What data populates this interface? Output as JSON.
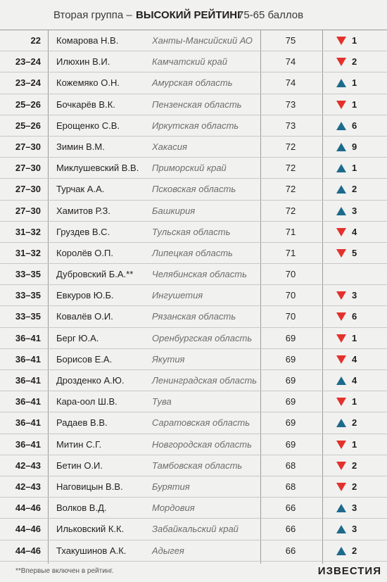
{
  "header": {
    "group": "Вторая группа –",
    "rating": "ВЫСОКИЙ РЕЙТИНГ",
    "range": "75-65 баллов"
  },
  "table": {
    "rows": [
      {
        "rank": "22",
        "name": "Комарова Н.В.",
        "region": "Ханты-Мансийский АО",
        "score": "75",
        "trend": "down",
        "change": "1"
      },
      {
        "rank": "23–24",
        "name": "Илюхин В.И.",
        "region": "Камчатский край",
        "score": "74",
        "trend": "down",
        "change": "2"
      },
      {
        "rank": "23–24",
        "name": "Кожемяко О.Н.",
        "region": "Амурская область",
        "score": "74",
        "trend": "up",
        "change": "1"
      },
      {
        "rank": "25–26",
        "name": "Бочкарёв В.К.",
        "region": "Пензенская область",
        "score": "73",
        "trend": "down",
        "change": "1"
      },
      {
        "rank": "25–26",
        "name": "Ерощенко С.В.",
        "region": "Иркутская область",
        "score": "73",
        "trend": "up",
        "change": "6"
      },
      {
        "rank": "27–30",
        "name": "Зимин В.М.",
        "region": "Хакасия",
        "score": "72",
        "trend": "up",
        "change": "9"
      },
      {
        "rank": "27–30",
        "name": "Миклушевский В.В.",
        "region": "Приморский край",
        "score": "72",
        "trend": "up",
        "change": "1"
      },
      {
        "rank": "27–30",
        "name": "Турчак А.А.",
        "region": "Псковская область",
        "score": "72",
        "trend": "up",
        "change": "2"
      },
      {
        "rank": "27–30",
        "name": "Хамитов Р.З.",
        "region": "Башкирия",
        "score": "72",
        "trend": "up",
        "change": "3"
      },
      {
        "rank": "31–32",
        "name": "Груздев В.С.",
        "region": "Тульская область",
        "score": "71",
        "trend": "down",
        "change": "4"
      },
      {
        "rank": "31–32",
        "name": "Королёв О.П.",
        "region": "Липецкая область",
        "score": "71",
        "trend": "down",
        "change": "5"
      },
      {
        "rank": "33–35",
        "name": "Дубровский Б.А.**",
        "region": "Челябинская область",
        "score": "70",
        "trend": null,
        "change": null
      },
      {
        "rank": "33–35",
        "name": "Евкуров Ю.Б.",
        "region": "Ингушетия",
        "score": "70",
        "trend": "down",
        "change": "3"
      },
      {
        "rank": "33–35",
        "name": "Ковалёв О.И.",
        "region": "Рязанская область",
        "score": "70",
        "trend": "down",
        "change": "6"
      },
      {
        "rank": "36–41",
        "name": "Берг Ю.А.",
        "region": "Оренбургская область",
        "score": "69",
        "trend": "down",
        "change": "1"
      },
      {
        "rank": "36–41",
        "name": "Борисов Е.А.",
        "region": "Якутия",
        "score": "69",
        "trend": "down",
        "change": "4"
      },
      {
        "rank": "36–41",
        "name": "Дрозденко А.Ю.",
        "region": "Ленинградская область",
        "score": "69",
        "trend": "up",
        "change": "4"
      },
      {
        "rank": "36–41",
        "name": "Кара-оол Ш.В.",
        "region": "Тува",
        "score": "69",
        "trend": "down",
        "change": "1"
      },
      {
        "rank": "36–41",
        "name": "Радаев В.В.",
        "region": "Саратовская область",
        "score": "69",
        "trend": "up",
        "change": "2"
      },
      {
        "rank": "36–41",
        "name": "Митин С.Г.",
        "region": "Новгородская область",
        "score": "69",
        "trend": "down",
        "change": "1"
      },
      {
        "rank": "42–43",
        "name": "Бетин О.И.",
        "region": "Тамбовская область",
        "score": "68",
        "trend": "down",
        "change": "2"
      },
      {
        "rank": "42–43",
        "name": "Наговицын В.В.",
        "region": "Бурятия",
        "score": "68",
        "trend": "down",
        "change": "2"
      },
      {
        "rank": "44–46",
        "name": "Волков В.Д.",
        "region": "Мордовия",
        "score": "66",
        "trend": "up",
        "change": "3"
      },
      {
        "rank": "44–46",
        "name": "Ильковский К.К.",
        "region": "Забайкальский край",
        "score": "66",
        "trend": "up",
        "change": "3"
      },
      {
        "rank": "44–46",
        "name": "Тхакушинов А.К.",
        "region": "Адыгея",
        "score": "66",
        "trend": "up",
        "change": "2"
      }
    ]
  },
  "footer": {
    "note": "**Впервые включен в рейтинг.",
    "logo": "ИЗВЕСТИЯ"
  }
}
